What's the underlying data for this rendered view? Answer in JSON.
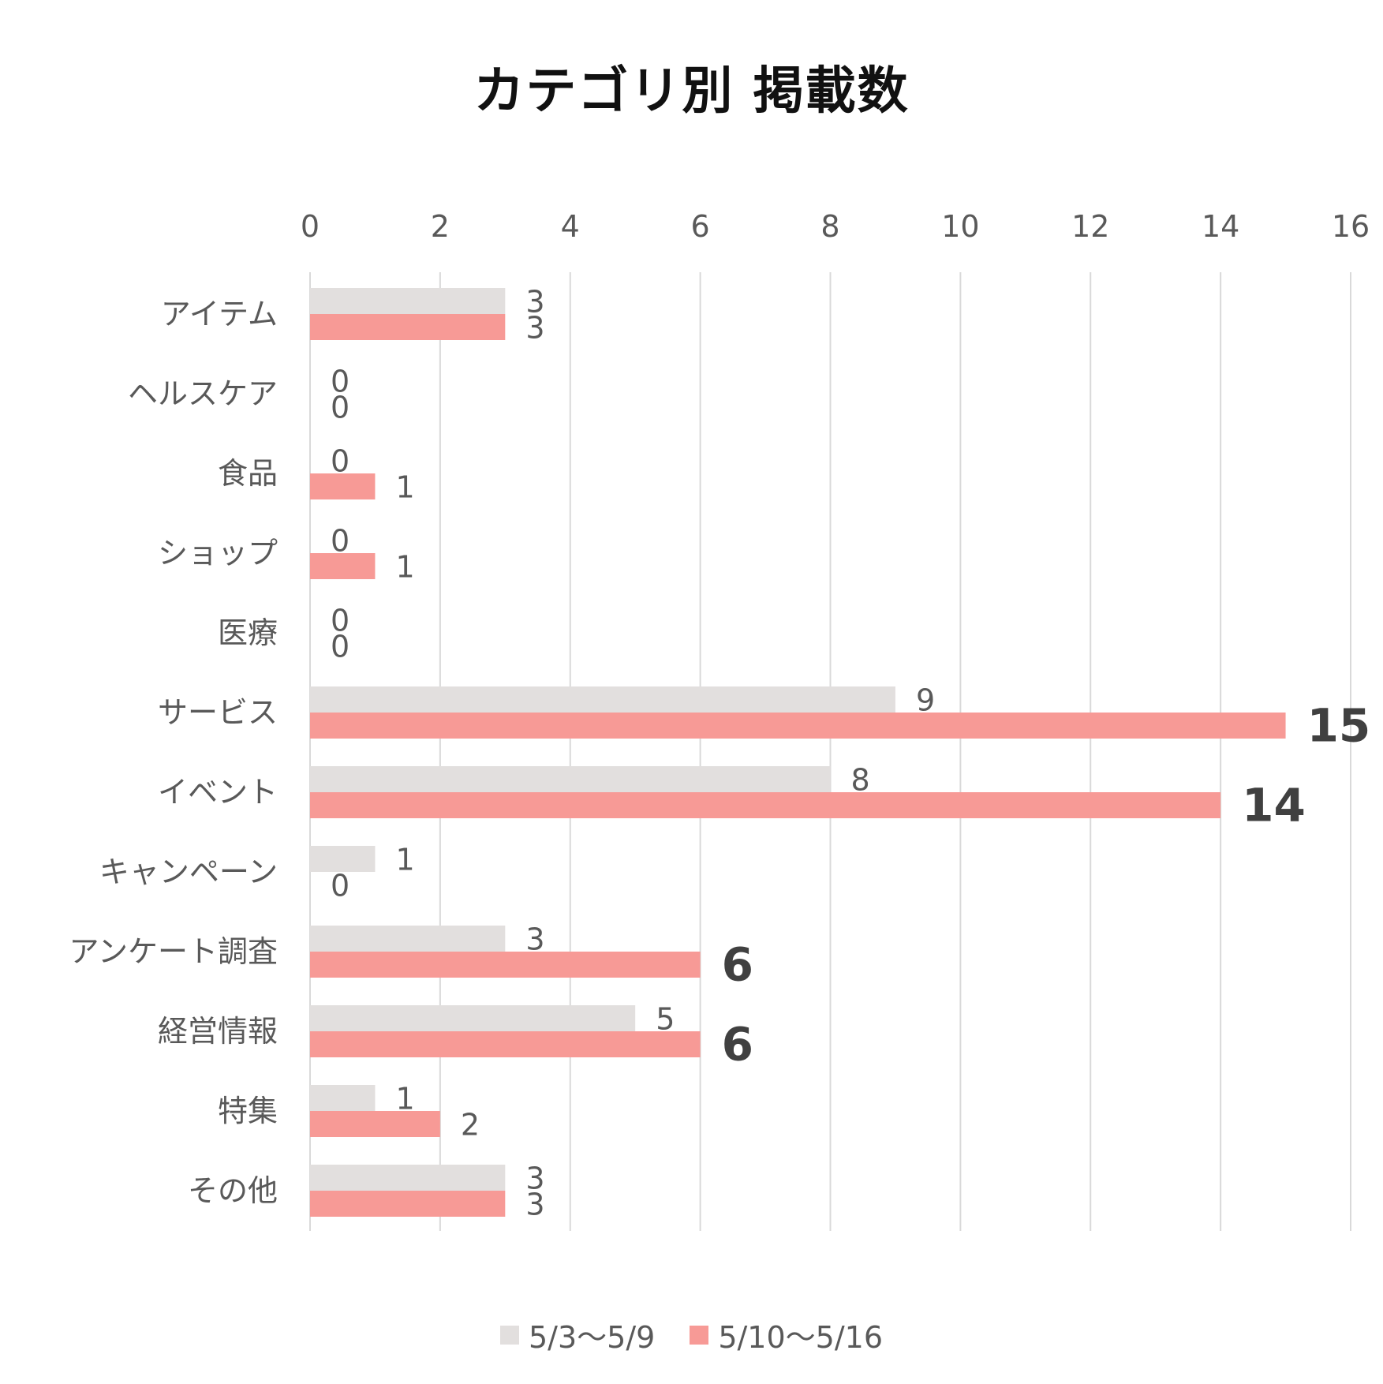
{
  "chart_data": {
    "type": "bar",
    "orientation": "horizontal",
    "title": "カテゴリ別 掲載数",
    "categories": [
      "アイテム",
      "ヘルスケア",
      "食品",
      "ショップ",
      "医療",
      "サービス",
      "イベント",
      "キャンペーン",
      "アンケート調査",
      "経営情報",
      "特集",
      "その他"
    ],
    "series": [
      {
        "name": "5/3〜5/9",
        "color": "#e2dfde",
        "values": [
          3,
          0,
          0,
          0,
          0,
          9,
          8,
          1,
          3,
          5,
          1,
          3
        ]
      },
      {
        "name": "5/10〜5/16",
        "color": "#f79a96",
        "values": [
          3,
          0,
          1,
          1,
          0,
          15,
          14,
          0,
          6,
          6,
          2,
          3
        ]
      }
    ],
    "xlim": [
      0,
      16
    ],
    "xticks": [
      0,
      2,
      4,
      6,
      8,
      10,
      12,
      14,
      16
    ],
    "x_axis_position": "top",
    "grid": true,
    "legend_position": "bottom",
    "data_labels": true,
    "emphasized_labels": "series 2 values of 6 or more shown in large bold"
  }
}
